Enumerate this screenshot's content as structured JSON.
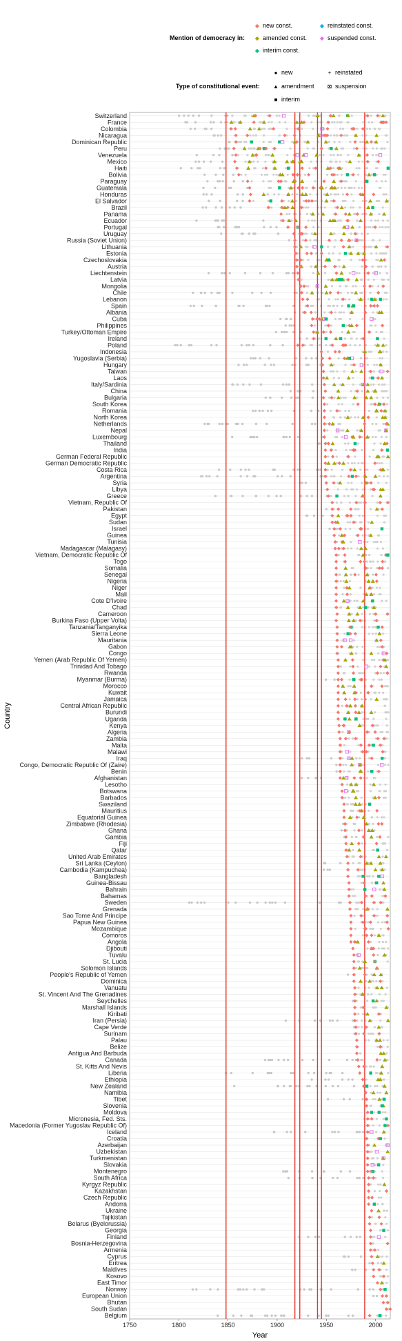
{
  "chart_data": {
    "type": "scatter",
    "xlabel": "Year",
    "ylabel": "Country",
    "xlim": [
      1750,
      2015
    ],
    "x_ticks": [
      1750,
      1800,
      1850,
      1900,
      1950,
      2000
    ],
    "vertical_reference_lines": [
      1848,
      1918,
      1923,
      1941,
      1945,
      1989
    ],
    "legend_democracy": {
      "title": "Mention of democracy in:",
      "entries": [
        {
          "label": "new const.",
          "color": "#F8766D"
        },
        {
          "label": "amended const.",
          "color": "#A3A500"
        },
        {
          "label": "interim const.",
          "color": "#00BF7D"
        },
        {
          "label": "reinstated const.",
          "color": "#00B0F6"
        },
        {
          "label": "suspended const.",
          "color": "#E76BF3"
        }
      ]
    },
    "legend_event": {
      "title": "Type of constitutional event:",
      "entries": [
        {
          "label": "new",
          "shape": "●"
        },
        {
          "label": "amendment",
          "shape": "▲"
        },
        {
          "label": "interim",
          "shape": "■"
        },
        {
          "label": "reinstated",
          "shape": "+"
        },
        {
          "label": "suspension",
          "shape": "⊠"
        }
      ]
    },
    "countries": [
      "Switzerland",
      "France",
      "Colombia",
      "Nicaragua",
      "Dominican Republic",
      "Peru",
      "Venezuela",
      "Mexico",
      "Haiti",
      "Bolivia",
      "Paraguay",
      "Guatemala",
      "Honduras",
      "El Salvador",
      "Brazil",
      "Panama",
      "Ecuador",
      "Portugal",
      "Uruguay",
      "Russia (Soviet Union)",
      "Lithuania",
      "Estonia",
      "Czechoslovakia",
      "Austria",
      "Liechtenstein",
      "Latvia",
      "Mongolia",
      "Chile",
      "Lebanon",
      "Spain",
      "Albania",
      "Cuba",
      "Philippines",
      "Turkey/Ottoman Empire",
      "Ireland",
      "Poland",
      "Indonesia",
      "Yugoslavia (Serbia)",
      "Hungary",
      "Taiwan",
      "Laos",
      "Italy/Sardinia",
      "China",
      "Bulgaria",
      "South Korea",
      "Romania",
      "North Korea",
      "Netherlands",
      "Nepal",
      "Luxembourg",
      "Thailand",
      "India",
      "German Federal Republic",
      "German Democratic Republic",
      "Costa Rica",
      "Argentina",
      "Syria",
      "Libya",
      "Greece",
      "Vietnam, Republic Of",
      "Pakistan",
      "Egypt",
      "Sudan",
      "Israel",
      "Guinea",
      "Tunisia",
      "Madagascar (Malagasy)",
      "Vietnam, Democratic Republic Of",
      "Togo",
      "Somalia",
      "Senegal",
      "Nigeria",
      "Niger",
      "Mali",
      "Cote D'Ivoire",
      "Chad",
      "Cameroon",
      "Burkina Faso (Upper Volta)",
      "Tanzania/Tanganyika",
      "Sierra Leone",
      "Mauritania",
      "Gabon",
      "Congo",
      "Yemen (Arab Republic Of Yemen)",
      "Trinidad And Tobago",
      "Rwanda",
      "Myanmar (Burma)",
      "Morocco",
      "Kuwait",
      "Jamaica",
      "Central African Republic",
      "Burundi",
      "Uganda",
      "Kenya",
      "Algeria",
      "Zambia",
      "Malta",
      "Malawi",
      "Iraq",
      "Congo, Democratic Republic Of (Zaire)",
      "Benin",
      "Afghanistan",
      "Lesotho",
      "Botswana",
      "Barbados",
      "Swaziland",
      "Mauritius",
      "Equatorial Guinea",
      "Zimbabwe (Rhodesia)",
      "Ghana",
      "Gambia",
      "Fiji",
      "Qatar",
      "United Arab Emirates",
      "Sri Lanka (Ceylon)",
      "Cambodia (Kampuchea)",
      "Bangladesh",
      "Guinea-Bissau",
      "Bahrain",
      "Bahamas",
      "Sweden",
      "Grenada",
      "Sao Tome And Principe",
      "Papua New Guinea",
      "Mozambique",
      "Comoros",
      "Angola",
      "Djibouti",
      "Tuvalu",
      "St. Lucia",
      "Solomon Islands",
      "People's Republic of Yemen",
      "Dominica",
      "Vanuatu",
      "St. Vincent And The Grenadines",
      "Seychelles",
      "Marshall Islands",
      "Kiribati",
      "Iran (Persia)",
      "Cape Verde",
      "Surinam",
      "Palau",
      "Belize",
      "Antigua And Barbuda",
      "Canada",
      "St. Kitts And Nevis",
      "Liberia",
      "Ethiopia",
      "New Zealand",
      "Namibia",
      "Tibet",
      "Slovenia",
      "Moldova",
      "Micronesia, Fed. Sts.",
      "Macedonia (Former Yugoslav Republic Of)",
      "Iceland",
      "Croatia",
      "Azerbaijan",
      "Uzbekistan",
      "Turkmenistan",
      "Slovakia",
      "Montenegro",
      "South Africa",
      "Kyrgyz Republic",
      "Kazakhstan",
      "Czech Republic",
      "Andorra",
      "Ukraine",
      "Tajikistan",
      "Belarus (Byelorussia)",
      "Georgia",
      "Finland",
      "Bosnia-Herzegovina",
      "Armenia",
      "Cyprus",
      "Eritrea",
      "Maldives",
      "Kosovo",
      "East Timor",
      "Norway",
      "European Union",
      "Bhutan",
      "South Sudan",
      "Belgium"
    ],
    "first_mention_year": [
      1848,
      1848,
      1853,
      1858,
      1858,
      1856,
      1858,
      1857,
      1859,
      1861,
      1870,
      1872,
      1873,
      1872,
      1891,
      1904,
      1906,
      1911,
      1917,
      1918,
      1918,
      1919,
      1920,
      1920,
      1921,
      1922,
      1924,
      1925,
      1926,
      1931,
      1928,
      1936,
      1935,
      1937,
      1937,
      1921,
      1945,
      1946,
      1946,
      1947,
      1947,
      1948,
      1949,
      1947,
      1948,
      1948,
      1948,
      1948,
      1948,
      1948,
      1949,
      1949,
      1949,
      1949,
      1949,
      1949,
      1950,
      1951,
      1952,
      1956,
      1956,
      1956,
      1956,
      1958,
      1958,
      1959,
      1959,
      1960,
      1960,
      1960,
      1960,
      1960,
      1960,
      1960,
      1960,
      1960,
      1961,
      1960,
      1961,
      1961,
      1961,
      1961,
      1961,
      1962,
      1962,
      1962,
      1962,
      1962,
      1962,
      1962,
      1962,
      1962,
      1962,
      1963,
      1963,
      1964,
      1964,
      1964,
      1964,
      1964,
      1964,
      1964,
      1966,
      1966,
      1966,
      1968,
      1968,
      1968,
      1969,
      1969,
      1970,
      1970,
      1970,
      1971,
      1972,
      1972,
      1972,
      1973,
      1973,
      1973,
      1974,
      1974,
      1975,
      1975,
      1975,
      1975,
      1975,
      1977,
      1978,
      1978,
      1978,
      1978,
      1978,
      1979,
      1979,
      1979,
      1979,
      1979,
      1979,
      1980,
      1980,
      1981,
      1981,
      1981,
      1982,
      1983,
      1984,
      1987,
      1988,
      1990,
      1991,
      1991,
      1992,
      1992,
      1992,
      1992,
      1991,
      1992,
      1992,
      1992,
      1992,
      1992,
      1993,
      1993,
      1993,
      1993,
      1993,
      1996,
      1994,
      1994,
      1995,
      1995,
      1995,
      1995,
      1996,
      1997,
      1998,
      1998,
      2002,
      2005,
      2007,
      2008,
      2011,
      1994
    ],
    "history_start_year": [
      1798,
      1791,
      1811,
      1826,
      1844,
      1823,
      1811,
      1814,
      1801,
      1826,
      1813,
      1825,
      1825,
      1824,
      1824,
      1904,
      1812,
      1822,
      1830,
      1906,
      1918,
      1918,
      1918,
      1920,
      1818,
      1918,
      1924,
      1811,
      1926,
      1808,
      1914,
      1901,
      1899,
      1876,
      1922,
      1791,
      1945,
      1869,
      1848,
      1947,
      1947,
      1848,
      1908,
      1879,
      1948,
      1866,
      1948,
      1814,
      1948,
      1841,
      1932,
      1949,
      1949,
      1949,
      1825,
      1819,
      1920,
      1951,
      1822,
      1956,
      1947,
      1923,
      1956,
      1948,
      1958,
      1959,
      1959,
      1960,
      1960,
      1960,
      1960,
      1960,
      1960,
      1960,
      1960,
      1960,
      1960,
      1960,
      1961,
      1961,
      1961,
      1960,
      1960,
      1962,
      1962,
      1962,
      1947,
      1962,
      1962,
      1962,
      1962,
      1962,
      1962,
      1963,
      1963,
      1964,
      1964,
      1964,
      1925,
      1960,
      1960,
      1923,
      1966,
      1966,
      1966,
      1968,
      1968,
      1968,
      1965,
      1957,
      1965,
      1970,
      1970,
      1971,
      1946,
      1947,
      1972,
      1973,
      1973,
      1973,
      1809,
      1974,
      1975,
      1975,
      1975,
      1975,
      1975,
      1977,
      1978,
      1978,
      1978,
      1970,
      1978,
      1979,
      1979,
      1976,
      1979,
      1979,
      1906,
      1975,
      1975,
      1981,
      1981,
      1981,
      1867,
      1983,
      1847,
      1931,
      1852,
      1990,
      1950,
      1991,
      1991,
      1979,
      1991,
      1874,
      1991,
      1991,
      1991,
      1991,
      1992,
      1905,
      1909,
      1993,
      1993,
      1993,
      1993,
      1996,
      1994,
      1994,
      1995,
      1919,
      1995,
      1995,
      1960,
      1993,
      1968,
      1998,
      2002,
      1814,
      1992,
      2008,
      2011,
      1831
    ]
  }
}
